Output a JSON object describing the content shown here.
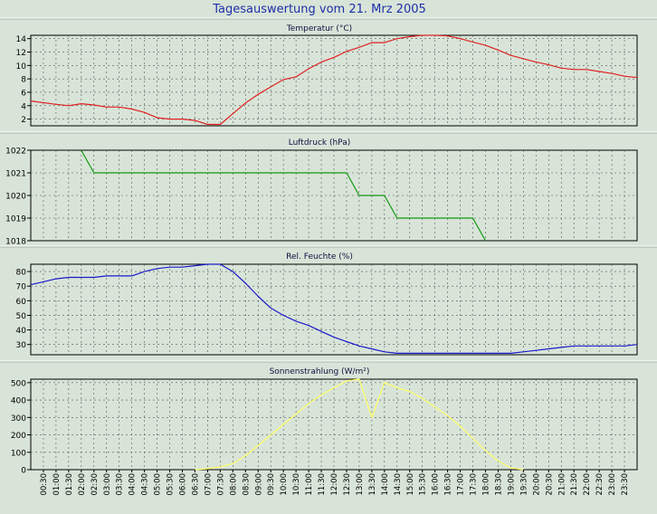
{
  "page": {
    "title": "Tagesauswertung vom 21. Mrz 2005",
    "title_color": "#1f2fa8",
    "background": "#d8e4d8"
  },
  "x_ticks": [
    "00:30",
    "01:00",
    "01:30",
    "02:00",
    "02:30",
    "03:00",
    "03:30",
    "04:00",
    "04:30",
    "05:00",
    "05:30",
    "06:00",
    "06:30",
    "07:00",
    "07:30",
    "08:00",
    "08:30",
    "09:00",
    "09:30",
    "10:00",
    "10:30",
    "11:00",
    "11:30",
    "12:00",
    "12:30",
    "13:00",
    "13:30",
    "14:00",
    "14:30",
    "15:00",
    "15:30",
    "16:00",
    "16:30",
    "17:00",
    "17:30",
    "18:00",
    "18:30",
    "19:00",
    "19:30",
    "20:00",
    "20:30",
    "21:00",
    "21:30",
    "22:00",
    "22:30",
    "23:00",
    "23:30"
  ],
  "chart_data": [
    {
      "type": "line",
      "title": "Temperatur (°C)",
      "color": "#e02020",
      "ylim": [
        1,
        14.5
      ],
      "yticks": [
        2,
        4,
        6,
        8,
        10,
        12,
        14
      ],
      "xlim": [
        0,
        24
      ],
      "grid": true,
      "series": [
        {
          "x": [
            0,
            1,
            1.5,
            2,
            2.5,
            3,
            3.5,
            4,
            4.5,
            5,
            5.5,
            6,
            6.5,
            7,
            7.5,
            8,
            8.5,
            9,
            9.5,
            10,
            10.5,
            11,
            11.5,
            12,
            12.5,
            13,
            13.5,
            14,
            14.5,
            15,
            15.5,
            16,
            16.5,
            17,
            17.5,
            18,
            18.5,
            19,
            19.5,
            20,
            20.5,
            21,
            21.5,
            22,
            22.5,
            23,
            23.5,
            24
          ],
          "y": [
            4.7,
            4.2,
            4,
            4.3,
            4.1,
            3.8,
            3.8,
            3.5,
            3,
            2.2,
            2,
            2,
            1.8,
            1.2,
            1.2,
            2.8,
            4.4,
            5.7,
            6.8,
            7.9,
            8.3,
            9.5,
            10.5,
            11.2,
            12.1,
            12.7,
            13.4,
            13.4,
            14,
            14.3,
            14.5,
            14.5,
            14.4,
            14,
            13.5,
            13,
            12.3,
            11.5,
            11,
            10.5,
            10.1,
            9.6,
            9.4,
            9.4,
            9.1,
            8.8,
            8.4,
            8.2
          ]
        }
      ]
    },
    {
      "type": "line",
      "title": "Luftdruck (hPa)",
      "color": "#119911",
      "ylim": [
        1018,
        1022
      ],
      "yticks": [
        1018,
        1019,
        1020,
        1021,
        1022
      ],
      "xlim": [
        0,
        24
      ],
      "grid": true,
      "series": [
        {
          "x": [
            2,
            2.5,
            12.5,
            13,
            14,
            14.5,
            17.5,
            18
          ],
          "y": [
            1022,
            1021,
            1021,
            1020,
            1020,
            1019,
            1019,
            1018
          ]
        }
      ]
    },
    {
      "type": "line",
      "title": "Rel. Feuchte (%)",
      "color": "#1a1acc",
      "ylim": [
        23,
        85
      ],
      "yticks": [
        30,
        40,
        50,
        60,
        70,
        80
      ],
      "xlim": [
        0,
        24
      ],
      "grid": true,
      "series": [
        {
          "x": [
            0,
            0.5,
            1,
            1.5,
            2,
            2.5,
            3,
            3.5,
            4,
            4.5,
            5,
            5.5,
            6,
            6.5,
            7,
            7.5,
            8,
            8.5,
            9,
            9.5,
            10,
            10.5,
            11,
            11.5,
            12,
            12.5,
            13,
            13.5,
            14,
            14.5,
            15,
            15.5,
            16,
            16.5,
            17,
            17.5,
            18,
            18.5,
            19,
            19.5,
            20,
            20.5,
            21,
            21.5,
            22,
            22.5,
            23,
            23.5,
            24
          ],
          "y": [
            71,
            73,
            75,
            76,
            76,
            76,
            77,
            77,
            77,
            80,
            82,
            83,
            83,
            84,
            85,
            85,
            80,
            72,
            63,
            55,
            50,
            46,
            43,
            39,
            35,
            32,
            29,
            27,
            25,
            24,
            24,
            24,
            24,
            24,
            24,
            24,
            24,
            24,
            24,
            25,
            26,
            27,
            28,
            29,
            29,
            29,
            29,
            29,
            30
          ]
        }
      ]
    },
    {
      "type": "line",
      "title": "Sonnenstrahlung (W/m²)",
      "color": "#ffff66",
      "ylim": [
        0,
        520
      ],
      "yticks": [
        0,
        100,
        200,
        300,
        400,
        500
      ],
      "xlim": [
        0,
        24
      ],
      "grid": true,
      "series": [
        {
          "x": [
            6.5,
            7,
            7.5,
            8,
            8.5,
            9,
            9.5,
            10,
            10.5,
            11,
            11.5,
            12,
            12.5,
            13,
            13.5,
            14,
            14.5,
            15,
            15.5,
            16,
            16.5,
            17,
            17.5,
            18,
            18.5,
            19,
            19.5
          ],
          "y": [
            0,
            5,
            15,
            35,
            80,
            140,
            200,
            260,
            320,
            380,
            430,
            470,
            510,
            520,
            300,
            500,
            470,
            450,
            410,
            360,
            310,
            250,
            180,
            110,
            50,
            10,
            0
          ]
        }
      ]
    }
  ]
}
